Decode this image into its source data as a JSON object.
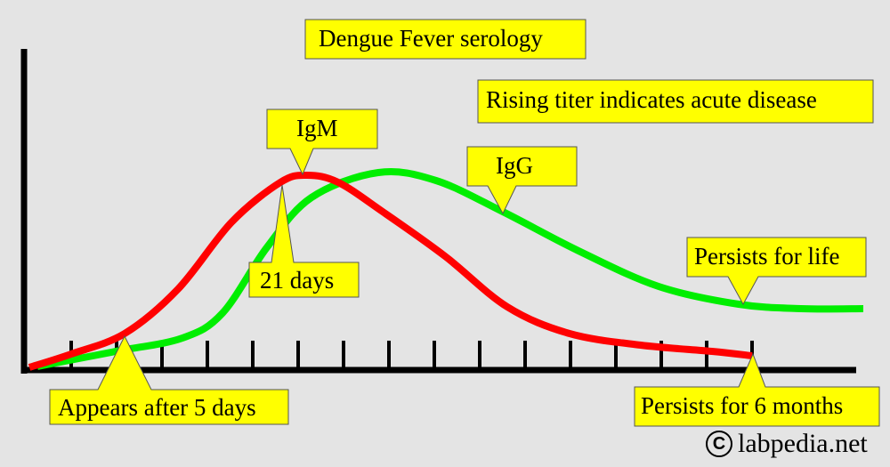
{
  "title": "Dengue Fever serology",
  "note": "Rising titer indicates acute disease",
  "callouts": {
    "igm": "IgM",
    "igg": "IgG",
    "peak": "21 days",
    "appears": "Appears after 5 days",
    "persists_life": "Persists for life",
    "persists_months": "Persists for 6 months"
  },
  "series_colors": {
    "igm": "#ff0000",
    "igg": "#00ee00"
  },
  "callout_color": "#ffff00",
  "copyright": {
    "symbol": "C",
    "text": "labpedia.net"
  }
}
